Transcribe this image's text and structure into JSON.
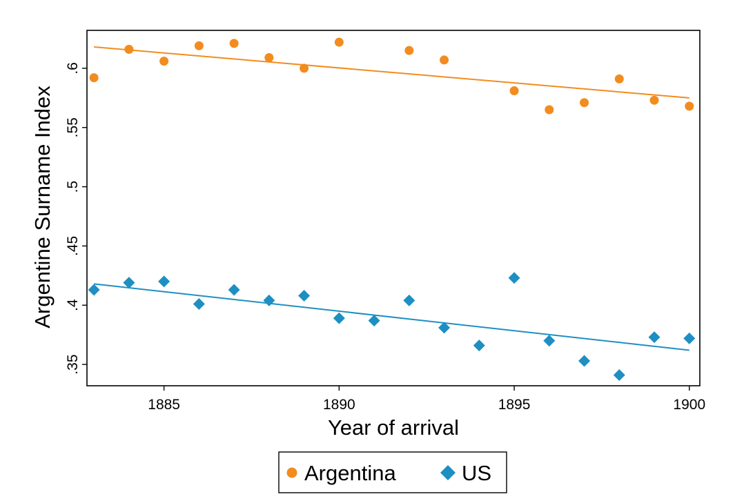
{
  "chart_data": {
    "type": "scatter",
    "title": "",
    "xlabel": "Year of arrival",
    "ylabel": "Argentine Surname Index",
    "xlim": [
      1882.8,
      1900.3
    ],
    "ylim": [
      0.332,
      0.632
    ],
    "xticks": [
      1885,
      1890,
      1895,
      1900
    ],
    "xtick_labels": [
      "1885",
      "1890",
      "1895",
      "1900"
    ],
    "yticks": [
      0.35,
      0.4,
      0.45,
      0.5,
      0.55,
      0.6
    ],
    "ytick_labels": [
      ".35",
      ".4",
      ".45",
      ".5",
      ".55",
      ".6"
    ],
    "grid": false,
    "legend_position": "bottom",
    "series": [
      {
        "name": "Argentina",
        "marker": "circle",
        "color": "#F28C1E",
        "x": [
          1883,
          1884,
          1885,
          1886,
          1887,
          1888,
          1889,
          1890,
          1892,
          1893,
          1895,
          1896,
          1897,
          1898,
          1899,
          1900
        ],
        "y": [
          0.592,
          0.616,
          0.606,
          0.619,
          0.621,
          0.609,
          0.6,
          0.622,
          0.615,
          0.607,
          0.581,
          0.565,
          0.571,
          0.591,
          0.573,
          0.568
        ],
        "fit": {
          "x": [
            1883,
            1900
          ],
          "y": [
            0.618,
            0.575
          ]
        }
      },
      {
        "name": "US",
        "marker": "diamond",
        "color": "#1E8FC2",
        "x": [
          1883,
          1884,
          1885,
          1886,
          1887,
          1888,
          1889,
          1890,
          1891,
          1892,
          1893,
          1894,
          1895,
          1896,
          1897,
          1898,
          1899,
          1900
        ],
        "y": [
          0.413,
          0.419,
          0.42,
          0.401,
          0.413,
          0.404,
          0.408,
          0.389,
          0.387,
          0.404,
          0.381,
          0.366,
          0.423,
          0.37,
          0.353,
          0.341,
          0.373,
          0.372
        ],
        "fit": {
          "x": [
            1883,
            1900
          ],
          "y": [
            0.418,
            0.362
          ]
        }
      }
    ]
  }
}
